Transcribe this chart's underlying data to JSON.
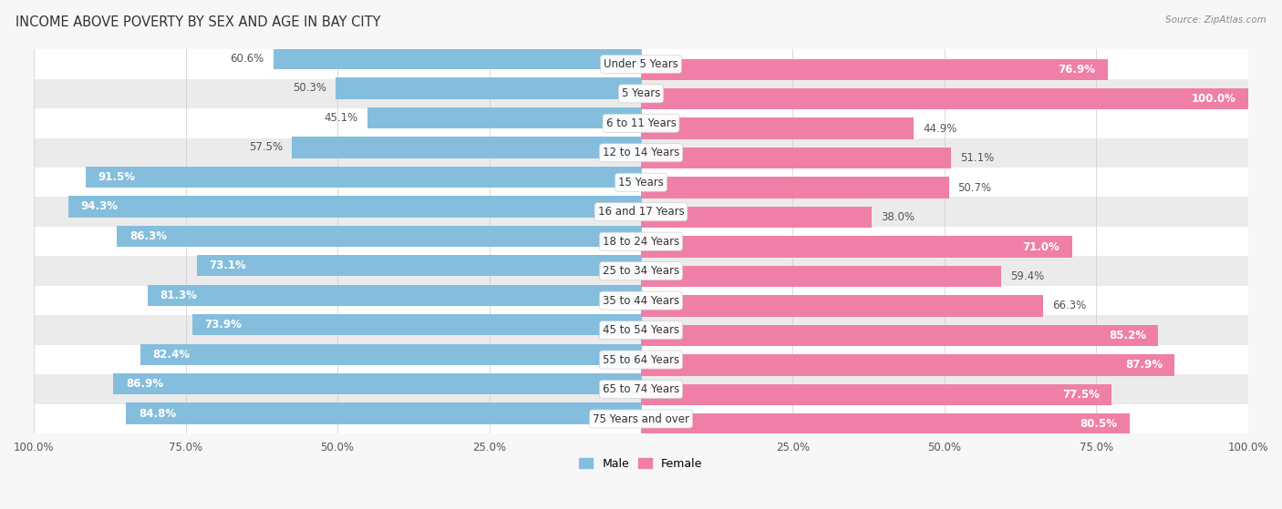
{
  "title": "INCOME ABOVE POVERTY BY SEX AND AGE IN BAY CITY",
  "source": "Source: ZipAtlas.com",
  "categories": [
    "Under 5 Years",
    "5 Years",
    "6 to 11 Years",
    "12 to 14 Years",
    "15 Years",
    "16 and 17 Years",
    "18 to 24 Years",
    "25 to 34 Years",
    "35 to 44 Years",
    "45 to 54 Years",
    "55 to 64 Years",
    "65 to 74 Years",
    "75 Years and over"
  ],
  "male_values": [
    60.6,
    50.3,
    45.1,
    57.5,
    91.5,
    94.3,
    86.3,
    73.1,
    81.3,
    73.9,
    82.4,
    86.9,
    84.8
  ],
  "female_values": [
    76.9,
    100.0,
    44.9,
    51.1,
    50.7,
    38.0,
    71.0,
    59.4,
    66.3,
    85.2,
    87.9,
    77.5,
    80.5
  ],
  "male_color": "#85BEDD",
  "female_color": "#F07FA8",
  "male_label_inside_color": "#ffffff",
  "male_label_outside_color": "#555555",
  "female_label_inside_color": "#ffffff",
  "female_label_outside_color": "#555555",
  "background_color": "#f7f7f7",
  "row_color_light": "#ffffff",
  "row_color_dark": "#ebebeb",
  "bar_height": 0.72,
  "label_fontsize": 8.5,
  "title_fontsize": 10.5,
  "source_fontsize": 7.5,
  "axis_label_fontsize": 8.5,
  "inside_label_threshold": 70,
  "legend_fontsize": 9
}
